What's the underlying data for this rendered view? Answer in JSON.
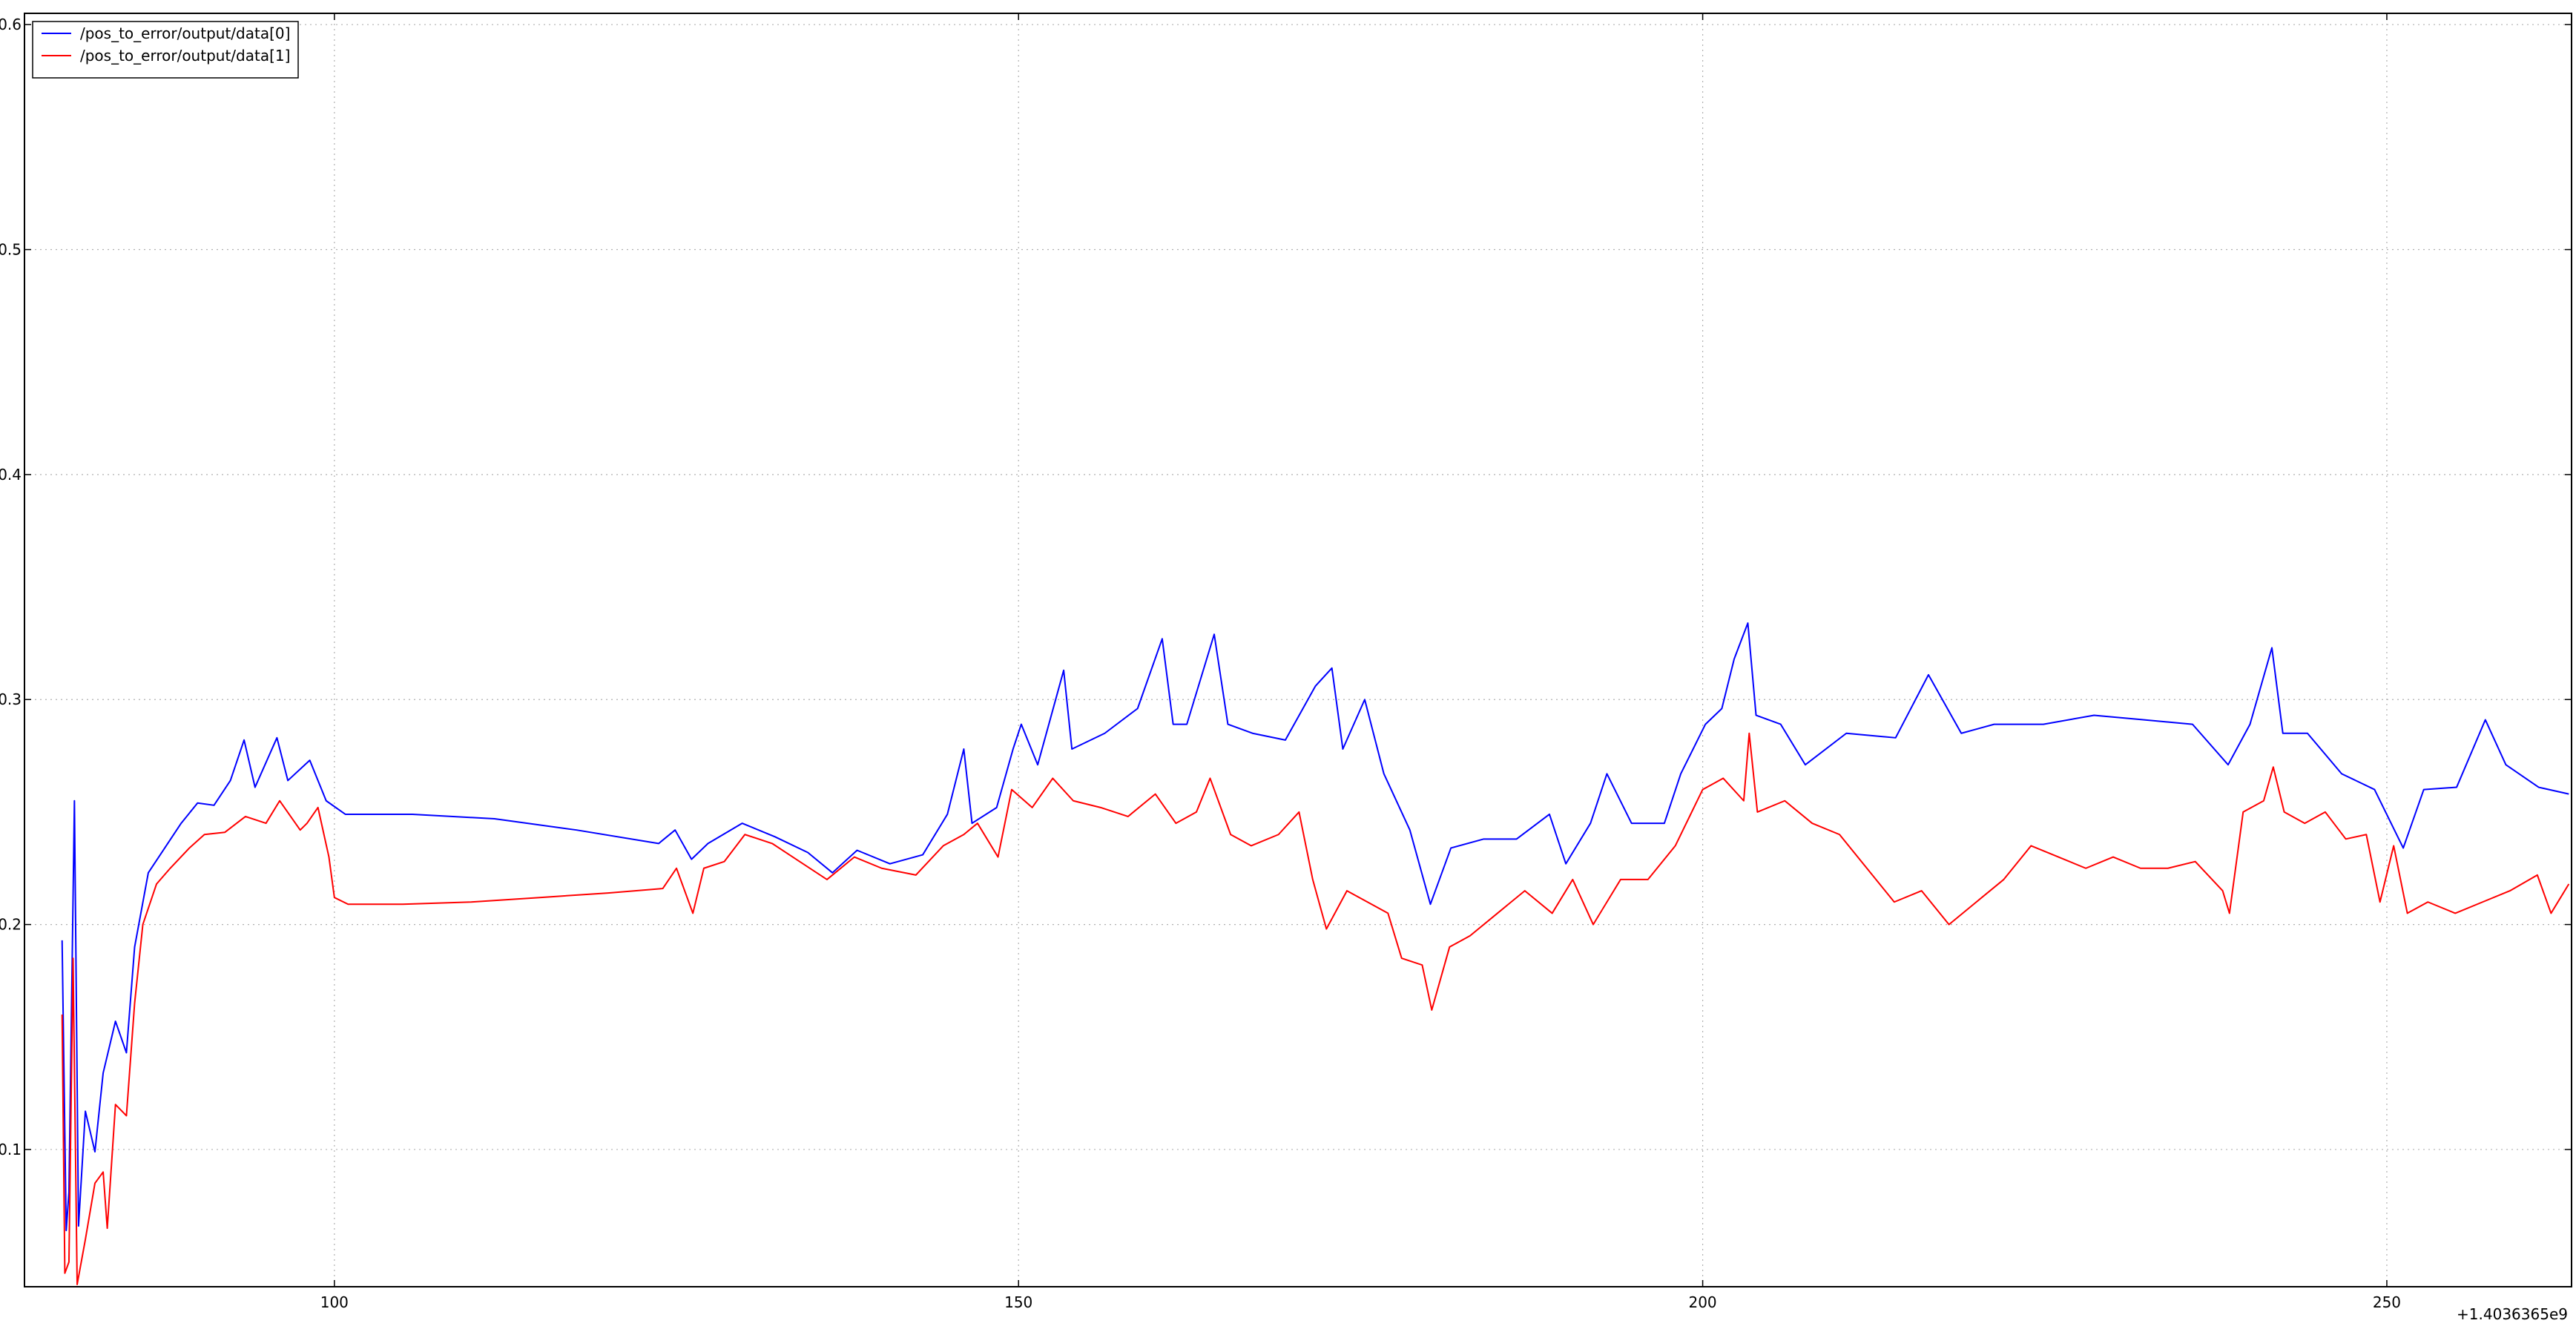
{
  "chart_data": {
    "type": "line",
    "x_offset_label": "+1.4036365e9",
    "xlim": [
      77.35,
      263.5
    ],
    "ylim": [
      0.039,
      0.605
    ],
    "xticks": [
      100,
      150,
      200,
      250
    ],
    "yticks": [
      0.1,
      0.2,
      0.3,
      0.4,
      0.5,
      0.6
    ],
    "grid": true,
    "legend": "upper left",
    "series": [
      {
        "name": "/pos_to_error/output/data[0]",
        "color": "#0000ff",
        "x": [
          80.1,
          80.4,
          80.6,
          81.0,
          81.3,
          81.8,
          82.5,
          83.1,
          84.0,
          84.8,
          85.4,
          86.4,
          87.6,
          88.8,
          90.0,
          91.2,
          92.4,
          93.4,
          94.2,
          95.8,
          96.6,
          98.2,
          99.4,
          100.8,
          105.7,
          111.7,
          117.7,
          123.7,
          124.9,
          126.1,
          127.3,
          129.8,
          132.2,
          134.6,
          136.4,
          138.2,
          140.6,
          143.0,
          144.8,
          146.0,
          146.6,
          148.4,
          149.6,
          150.2,
          151.4,
          153.3,
          153.9,
          156.3,
          158.7,
          160.5,
          161.3,
          162.3,
          164.3,
          165.3,
          167.1,
          169.5,
          171.7,
          172.9,
          173.7,
          175.3,
          176.7,
          178.6,
          180.1,
          181.6,
          184.0,
          186.4,
          188.8,
          190.0,
          191.8,
          193.0,
          194.8,
          197.2,
          198.4,
          200.2,
          201.4,
          202.3,
          203.3,
          203.9,
          205.7,
          207.5,
          210.5,
          214.1,
          216.5,
          218.9,
          221.3,
          224.9,
          228.6,
          232.2,
          235.8,
          238.4,
          240.0,
          241.6,
          242.4,
          244.2,
          246.7,
          249.1,
          251.2,
          252.7,
          255.1,
          257.2,
          258.7,
          261.1,
          263.3
        ],
        "values": [
          0.193,
          0.064,
          0.081,
          0.255,
          0.066,
          0.117,
          0.099,
          0.134,
          0.157,
          0.143,
          0.19,
          0.223,
          0.234,
          0.245,
          0.254,
          0.253,
          0.264,
          0.282,
          0.261,
          0.283,
          0.264,
          0.273,
          0.255,
          0.249,
          0.249,
          0.247,
          0.242,
          0.236,
          0.242,
          0.229,
          0.236,
          0.245,
          0.239,
          0.232,
          0.223,
          0.233,
          0.227,
          0.231,
          0.249,
          0.278,
          0.245,
          0.252,
          0.278,
          0.289,
          0.271,
          0.313,
          0.278,
          0.285,
          0.296,
          0.327,
          0.289,
          0.289,
          0.329,
          0.289,
          0.285,
          0.282,
          0.306,
          0.314,
          0.278,
          0.3,
          0.267,
          0.242,
          0.209,
          0.234,
          0.238,
          0.238,
          0.249,
          0.227,
          0.245,
          0.267,
          0.245,
          0.245,
          0.267,
          0.289,
          0.296,
          0.318,
          0.334,
          0.293,
          0.289,
          0.271,
          0.285,
          0.283,
          0.311,
          0.285,
          0.289,
          0.289,
          0.293,
          0.291,
          0.289,
          0.271,
          0.289,
          0.323,
          0.285,
          0.285,
          0.267,
          0.26,
          0.234,
          0.26,
          0.261,
          0.291,
          0.271,
          0.261,
          0.258
        ]
      },
      {
        "name": "/pos_to_error/output/data[1]",
        "color": "#ff0000",
        "x": [
          80.1,
          80.3,
          80.6,
          80.9,
          81.2,
          81.8,
          82.5,
          83.1,
          83.4,
          84.0,
          84.8,
          85.4,
          86.0,
          87.0,
          88.0,
          89.4,
          90.5,
          92.0,
          93.5,
          95.0,
          96.0,
          97.5,
          98.0,
          98.8,
          99.6,
          100.0,
          101.0,
          105,
          110,
          115,
          120,
          124,
          125,
          126.2,
          127,
          128.5,
          130,
          132,
          134,
          136,
          138,
          140,
          142.5,
          144.5,
          146,
          147,
          148.5,
          149.5,
          151,
          152.5,
          154,
          156,
          158,
          160,
          161.5,
          163,
          164,
          165.5,
          167,
          169,
          170.5,
          171.5,
          172.5,
          174,
          175.5,
          177,
          178,
          179.5,
          180.2,
          181.5,
          183,
          185,
          187,
          189,
          190.5,
          192,
          194,
          196,
          198,
          200,
          201.5,
          203,
          203.4,
          204,
          206,
          208,
          210,
          212,
          214,
          216,
          218,
          220,
          222,
          224,
          226,
          228,
          230,
          232,
          234,
          236,
          238,
          238.5,
          239.5,
          241,
          241.7,
          242.5,
          244,
          245.5,
          247,
          248.5,
          249.5,
          250.5,
          251.5,
          253,
          255,
          257,
          259,
          261,
          262,
          263.3
        ],
        "values": [
          0.16,
          0.045,
          0.05,
          0.185,
          0.04,
          0.06,
          0.085,
          0.09,
          0.065,
          0.12,
          0.115,
          0.165,
          0.2,
          0.218,
          0.225,
          0.234,
          0.24,
          0.241,
          0.248,
          0.245,
          0.255,
          0.242,
          0.245,
          0.252,
          0.23,
          0.212,
          0.209,
          0.209,
          0.21,
          0.212,
          0.214,
          0.216,
          0.225,
          0.205,
          0.225,
          0.228,
          0.24,
          0.236,
          0.228,
          0.22,
          0.23,
          0.225,
          0.222,
          0.235,
          0.24,
          0.245,
          0.23,
          0.26,
          0.252,
          0.265,
          0.255,
          0.252,
          0.248,
          0.258,
          0.245,
          0.25,
          0.265,
          0.24,
          0.235,
          0.24,
          0.25,
          0.22,
          0.198,
          0.215,
          0.21,
          0.205,
          0.185,
          0.182,
          0.162,
          0.19,
          0.195,
          0.205,
          0.215,
          0.205,
          0.22,
          0.2,
          0.22,
          0.22,
          0.235,
          0.26,
          0.265,
          0.255,
          0.285,
          0.25,
          0.255,
          0.245,
          0.24,
          0.225,
          0.21,
          0.215,
          0.2,
          0.21,
          0.22,
          0.235,
          0.23,
          0.225,
          0.23,
          0.225,
          0.225,
          0.228,
          0.215,
          0.205,
          0.25,
          0.255,
          0.27,
          0.25,
          0.245,
          0.25,
          0.238,
          0.24,
          0.21,
          0.235,
          0.205,
          0.21,
          0.205,
          0.21,
          0.215,
          0.222,
          0.205,
          0.218
        ]
      }
    ]
  }
}
